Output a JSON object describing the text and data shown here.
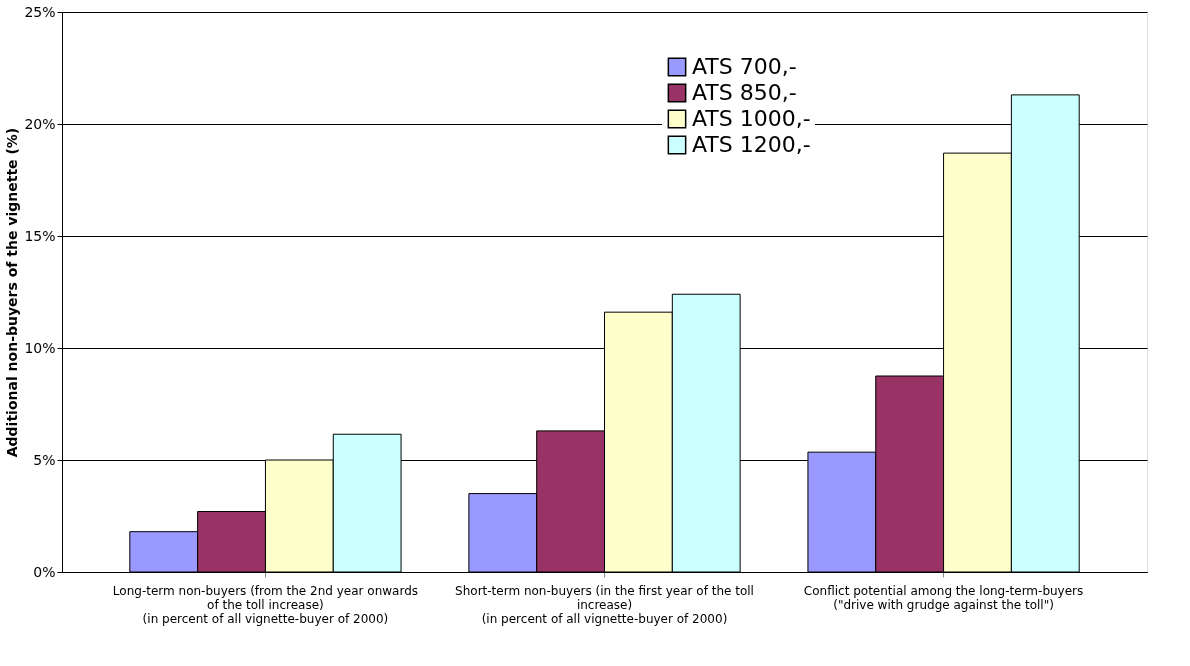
{
  "chart_data": {
    "type": "bar",
    "ylabel": "Additional non-buyers of the vignette (%)",
    "categories": [
      "Long-term non-buyers (from the 2nd year onwards\nof the toll increase)\n(in percent of all vignette-buyer of 2000)",
      "Short-term non-buyers (in the first year of the toll\nincrease)\n(in percent of all vignette-buyer of 2000)",
      "Conflict potential among the long-term-buyers\n(\"drive with grudge against the toll\")"
    ],
    "series": [
      {
        "name": "ATS 700,-",
        "color": "#9999ff",
        "values": [
          1.8,
          3.5,
          5.35
        ]
      },
      {
        "name": "ATS 850,-",
        "color": "#993366",
        "values": [
          2.7,
          6.3,
          8.75
        ]
      },
      {
        "name": "ATS 1000,-",
        "color": "#ffffcc",
        "values": [
          5.0,
          11.6,
          18.7
        ]
      },
      {
        "name": "ATS 1200,-",
        "color": "#ccffff",
        "values": [
          6.15,
          12.4,
          21.3
        ]
      }
    ],
    "ylim": [
      0,
      25
    ],
    "yticks": [
      {
        "value": 0,
        "label": "0%"
      },
      {
        "value": 5,
        "label": "5%"
      },
      {
        "value": 10,
        "label": "10%"
      },
      {
        "value": 15,
        "label": "15%"
      },
      {
        "value": 20,
        "label": "20%"
      },
      {
        "value": 25,
        "label": "25%"
      }
    ],
    "grid": "y",
    "legend": "top right"
  }
}
